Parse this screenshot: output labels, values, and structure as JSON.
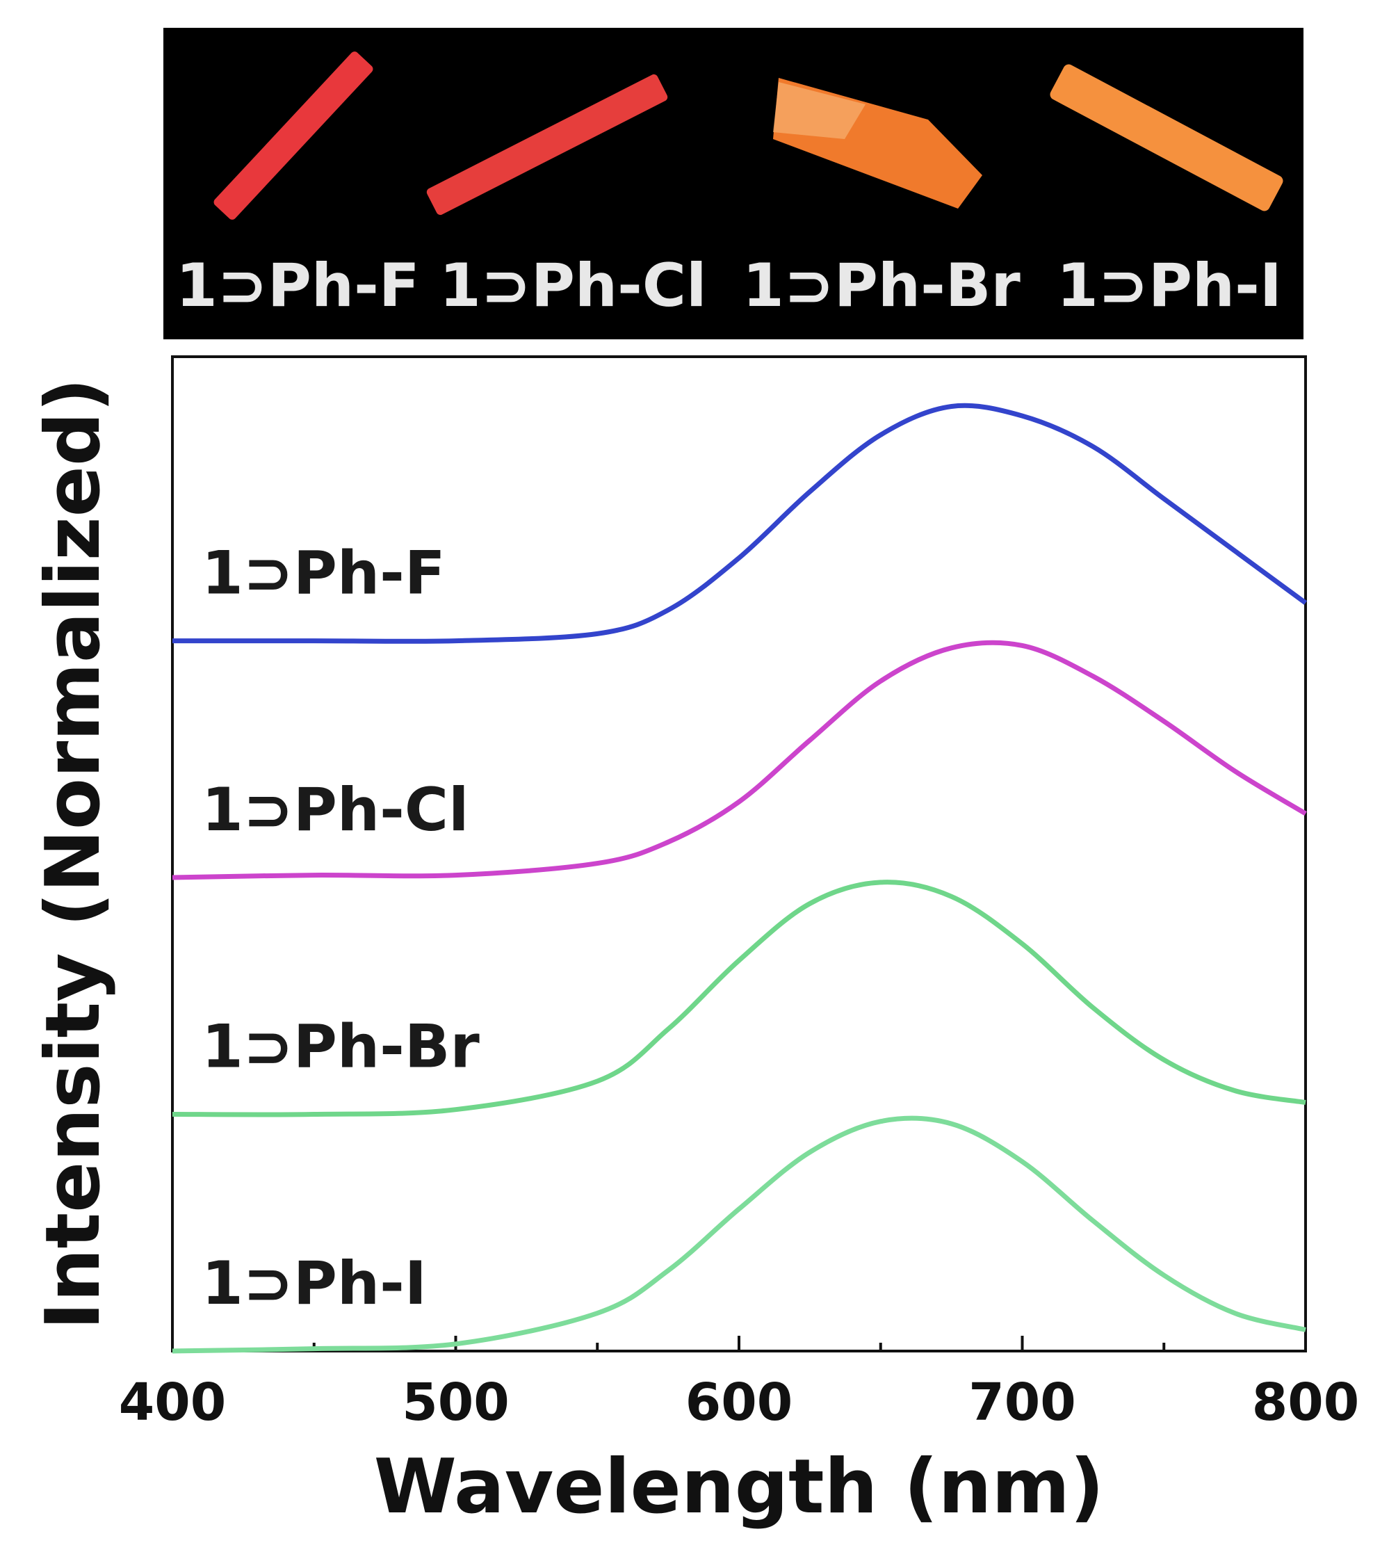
{
  "photo_panel": {
    "background": "#000000",
    "crystals": [
      {
        "label": "1⊃Ph-F",
        "color": "#e8383c"
      },
      {
        "label": "1⊃Ph-Cl",
        "color": "#e63e3c"
      },
      {
        "label": "1⊃Ph-Br",
        "color": "#f07a2c"
      },
      {
        "label": "1⊃Ph-I",
        "color": "#f5913e"
      }
    ]
  },
  "chart_data": {
    "type": "line",
    "xlabel": "Wavelength (nm)",
    "ylabel": "Intensity (Normalized)",
    "xlim": [
      400,
      800
    ],
    "x_ticks": [
      400,
      500,
      600,
      700,
      800
    ],
    "ylim": [
      0,
      4.2
    ],
    "y_ticks_shown": false,
    "grid": false,
    "series": [
      {
        "name": "1⊃Ph-F",
        "color": "#3344cc",
        "offset": 3.0,
        "x": [
          400,
          450,
          500,
          550,
          575,
          600,
          625,
          650,
          675,
          700,
          725,
          750,
          775,
          800
        ],
        "values": [
          0.0,
          0.0,
          0.0,
          0.03,
          0.13,
          0.35,
          0.63,
          0.87,
          0.99,
          0.95,
          0.82,
          0.6,
          0.38,
          0.16
        ]
      },
      {
        "name": "1⊃Ph-Cl",
        "color": "#cc44cc",
        "offset": 2.0,
        "x": [
          400,
          450,
          500,
          550,
          575,
          600,
          625,
          650,
          675,
          700,
          725,
          750,
          775,
          800
        ],
        "values": [
          0.0,
          0.01,
          0.01,
          0.06,
          0.15,
          0.32,
          0.58,
          0.83,
          0.97,
          0.98,
          0.85,
          0.66,
          0.45,
          0.27
        ]
      },
      {
        "name": "1⊃Ph-Br",
        "color": "#6fd68a",
        "offset": 1.0,
        "x": [
          400,
          450,
          500,
          550,
          575,
          600,
          625,
          650,
          675,
          700,
          725,
          750,
          775,
          800
        ],
        "values": [
          0.0,
          0.0,
          0.02,
          0.14,
          0.36,
          0.65,
          0.89,
          0.98,
          0.92,
          0.72,
          0.45,
          0.23,
          0.1,
          0.05
        ]
      },
      {
        "name": "1⊃Ph-I",
        "color": "#7ddc9a",
        "offset": 0.0,
        "x": [
          400,
          450,
          500,
          550,
          575,
          600,
          625,
          650,
          675,
          700,
          725,
          750,
          775,
          800
        ],
        "values": [
          0.0,
          0.01,
          0.03,
          0.16,
          0.34,
          0.6,
          0.84,
          0.97,
          0.96,
          0.8,
          0.55,
          0.32,
          0.16,
          0.09
        ]
      }
    ]
  }
}
